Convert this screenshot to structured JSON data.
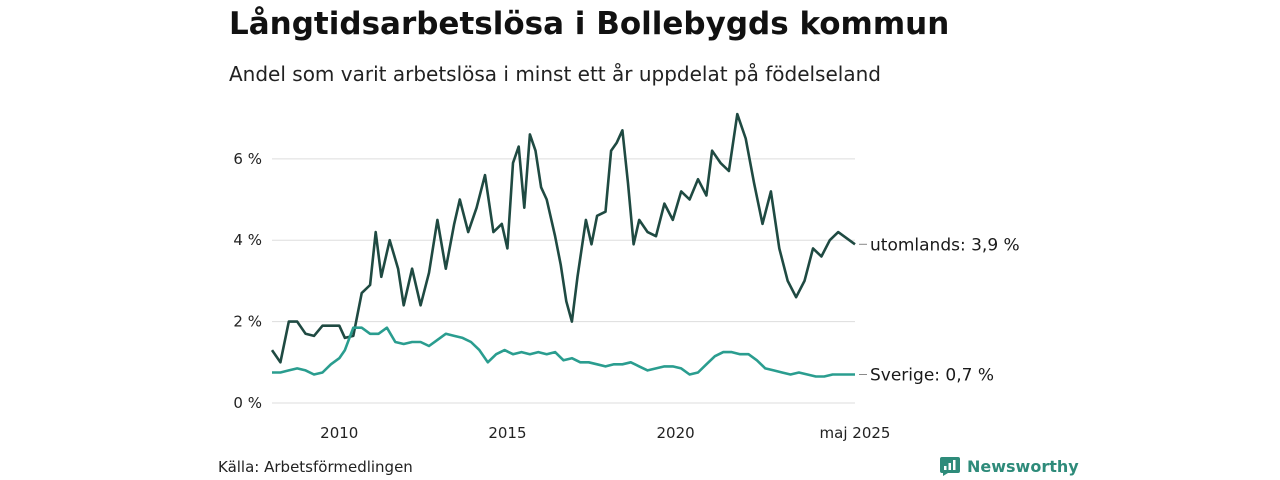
{
  "header": {
    "title": "Långtidsarbetslösa i Bollebygds kommun",
    "subtitle": "Andel som varit arbetslösa i minst ett år uppdelat på födelseland"
  },
  "footer": {
    "source": "Källa: Arbetsförmedlingen",
    "brand": "Newsworthy"
  },
  "colors": {
    "utomlands": "#1f4a42",
    "sverige": "#2a9d8f",
    "grid": "#dddddd",
    "brand": "#2e8b7a"
  },
  "chart_data": {
    "type": "line",
    "y_ticks": [
      "0 %",
      "2 %",
      "4 %",
      "6 %"
    ],
    "y_tick_values": [
      0,
      2,
      4,
      6
    ],
    "x_ticks": [
      "2010",
      "2015",
      "2020",
      "maj 2025"
    ],
    "x_tick_values": [
      "2010-01",
      "2015-01",
      "2020-01",
      "2025-05"
    ],
    "ylim": [
      0,
      7.1
    ],
    "xlim": [
      "2008-01",
      "2025-05"
    ],
    "grid": true,
    "series": [
      {
        "name": "utomlands",
        "end_label": "utomlands: 3,9 %",
        "points": [
          [
            "2008-01",
            1.3
          ],
          [
            "2008-04",
            1.0
          ],
          [
            "2008-07",
            2.0
          ],
          [
            "2008-10",
            2.0
          ],
          [
            "2009-01",
            1.7
          ],
          [
            "2009-04",
            1.65
          ],
          [
            "2009-07",
            1.9
          ],
          [
            "2009-10",
            1.9
          ],
          [
            "2010-01",
            1.9
          ],
          [
            "2010-03",
            1.6
          ],
          [
            "2010-06",
            1.65
          ],
          [
            "2010-09",
            2.7
          ],
          [
            "2010-12",
            2.9
          ],
          [
            "2011-02",
            4.2
          ],
          [
            "2011-04",
            3.1
          ],
          [
            "2011-07",
            4.0
          ],
          [
            "2011-10",
            3.3
          ],
          [
            "2011-12",
            2.4
          ],
          [
            "2012-03",
            3.3
          ],
          [
            "2012-06",
            2.4
          ],
          [
            "2012-09",
            3.2
          ],
          [
            "2012-12",
            4.5
          ],
          [
            "2013-03",
            3.3
          ],
          [
            "2013-06",
            4.4
          ],
          [
            "2013-08",
            5.0
          ],
          [
            "2013-11",
            4.2
          ],
          [
            "2014-02",
            4.8
          ],
          [
            "2014-05",
            5.6
          ],
          [
            "2014-08",
            4.2
          ],
          [
            "2014-11",
            4.4
          ],
          [
            "2015-01",
            3.8
          ],
          [
            "2015-03",
            5.9
          ],
          [
            "2015-05",
            6.3
          ],
          [
            "2015-07",
            4.8
          ],
          [
            "2015-09",
            6.6
          ],
          [
            "2015-11",
            6.2
          ],
          [
            "2016-01",
            5.3
          ],
          [
            "2016-03",
            5.0
          ],
          [
            "2016-06",
            4.1
          ],
          [
            "2016-08",
            3.4
          ],
          [
            "2016-10",
            2.5
          ],
          [
            "2016-12",
            2.0
          ],
          [
            "2017-02",
            3.1
          ],
          [
            "2017-05",
            4.5
          ],
          [
            "2017-07",
            3.9
          ],
          [
            "2017-09",
            4.6
          ],
          [
            "2017-12",
            4.7
          ],
          [
            "2018-02",
            6.2
          ],
          [
            "2018-04",
            6.4
          ],
          [
            "2018-06",
            6.7
          ],
          [
            "2018-08",
            5.4
          ],
          [
            "2018-10",
            3.9
          ],
          [
            "2018-12",
            4.5
          ],
          [
            "2019-03",
            4.2
          ],
          [
            "2019-06",
            4.1
          ],
          [
            "2019-09",
            4.9
          ],
          [
            "2019-12",
            4.5
          ],
          [
            "2020-03",
            5.2
          ],
          [
            "2020-06",
            5.0
          ],
          [
            "2020-09",
            5.5
          ],
          [
            "2020-12",
            5.1
          ],
          [
            "2021-02",
            6.2
          ],
          [
            "2021-05",
            5.9
          ],
          [
            "2021-08",
            5.7
          ],
          [
            "2021-11",
            7.1
          ],
          [
            "2022-02",
            6.5
          ],
          [
            "2022-05",
            5.4
          ],
          [
            "2022-08",
            4.4
          ],
          [
            "2022-11",
            5.2
          ],
          [
            "2023-02",
            3.8
          ],
          [
            "2023-05",
            3.0
          ],
          [
            "2023-08",
            2.6
          ],
          [
            "2023-11",
            3.0
          ],
          [
            "2024-02",
            3.8
          ],
          [
            "2024-05",
            3.6
          ],
          [
            "2024-08",
            4.0
          ],
          [
            "2024-11",
            4.2
          ],
          [
            "2025-05",
            3.9
          ]
        ]
      },
      {
        "name": "Sverige",
        "end_label": "Sverige: 0,7 %",
        "points": [
          [
            "2008-01",
            0.75
          ],
          [
            "2008-04",
            0.75
          ],
          [
            "2008-07",
            0.8
          ],
          [
            "2008-10",
            0.85
          ],
          [
            "2009-01",
            0.8
          ],
          [
            "2009-04",
            0.7
          ],
          [
            "2009-07",
            0.75
          ],
          [
            "2009-10",
            0.95
          ],
          [
            "2010-01",
            1.1
          ],
          [
            "2010-03",
            1.3
          ],
          [
            "2010-06",
            1.85
          ],
          [
            "2010-09",
            1.85
          ],
          [
            "2010-12",
            1.7
          ],
          [
            "2011-03",
            1.7
          ],
          [
            "2011-06",
            1.85
          ],
          [
            "2011-09",
            1.5
          ],
          [
            "2011-12",
            1.45
          ],
          [
            "2012-03",
            1.5
          ],
          [
            "2012-06",
            1.5
          ],
          [
            "2012-09",
            1.4
          ],
          [
            "2012-12",
            1.55
          ],
          [
            "2013-03",
            1.7
          ],
          [
            "2013-06",
            1.65
          ],
          [
            "2013-09",
            1.6
          ],
          [
            "2013-12",
            1.5
          ],
          [
            "2014-03",
            1.3
          ],
          [
            "2014-06",
            1.0
          ],
          [
            "2014-09",
            1.2
          ],
          [
            "2014-12",
            1.3
          ],
          [
            "2015-03",
            1.2
          ],
          [
            "2015-06",
            1.25
          ],
          [
            "2015-09",
            1.2
          ],
          [
            "2015-12",
            1.25
          ],
          [
            "2016-03",
            1.2
          ],
          [
            "2016-06",
            1.25
          ],
          [
            "2016-09",
            1.05
          ],
          [
            "2016-12",
            1.1
          ],
          [
            "2017-03",
            1.0
          ],
          [
            "2017-06",
            1.0
          ],
          [
            "2017-09",
            0.95
          ],
          [
            "2017-12",
            0.9
          ],
          [
            "2018-03",
            0.95
          ],
          [
            "2018-06",
            0.95
          ],
          [
            "2018-09",
            1.0
          ],
          [
            "2018-12",
            0.9
          ],
          [
            "2019-03",
            0.8
          ],
          [
            "2019-06",
            0.85
          ],
          [
            "2019-09",
            0.9
          ],
          [
            "2019-12",
            0.9
          ],
          [
            "2020-03",
            0.85
          ],
          [
            "2020-06",
            0.7
          ],
          [
            "2020-09",
            0.75
          ],
          [
            "2020-12",
            0.95
          ],
          [
            "2021-03",
            1.15
          ],
          [
            "2021-06",
            1.25
          ],
          [
            "2021-09",
            1.25
          ],
          [
            "2021-12",
            1.2
          ],
          [
            "2022-03",
            1.2
          ],
          [
            "2022-06",
            1.05
          ],
          [
            "2022-09",
            0.85
          ],
          [
            "2022-12",
            0.8
          ],
          [
            "2023-03",
            0.75
          ],
          [
            "2023-06",
            0.7
          ],
          [
            "2023-09",
            0.75
          ],
          [
            "2023-12",
            0.7
          ],
          [
            "2024-03",
            0.65
          ],
          [
            "2024-06",
            0.65
          ],
          [
            "2024-09",
            0.7
          ],
          [
            "2024-12",
            0.7
          ],
          [
            "2025-05",
            0.7
          ]
        ]
      }
    ]
  }
}
